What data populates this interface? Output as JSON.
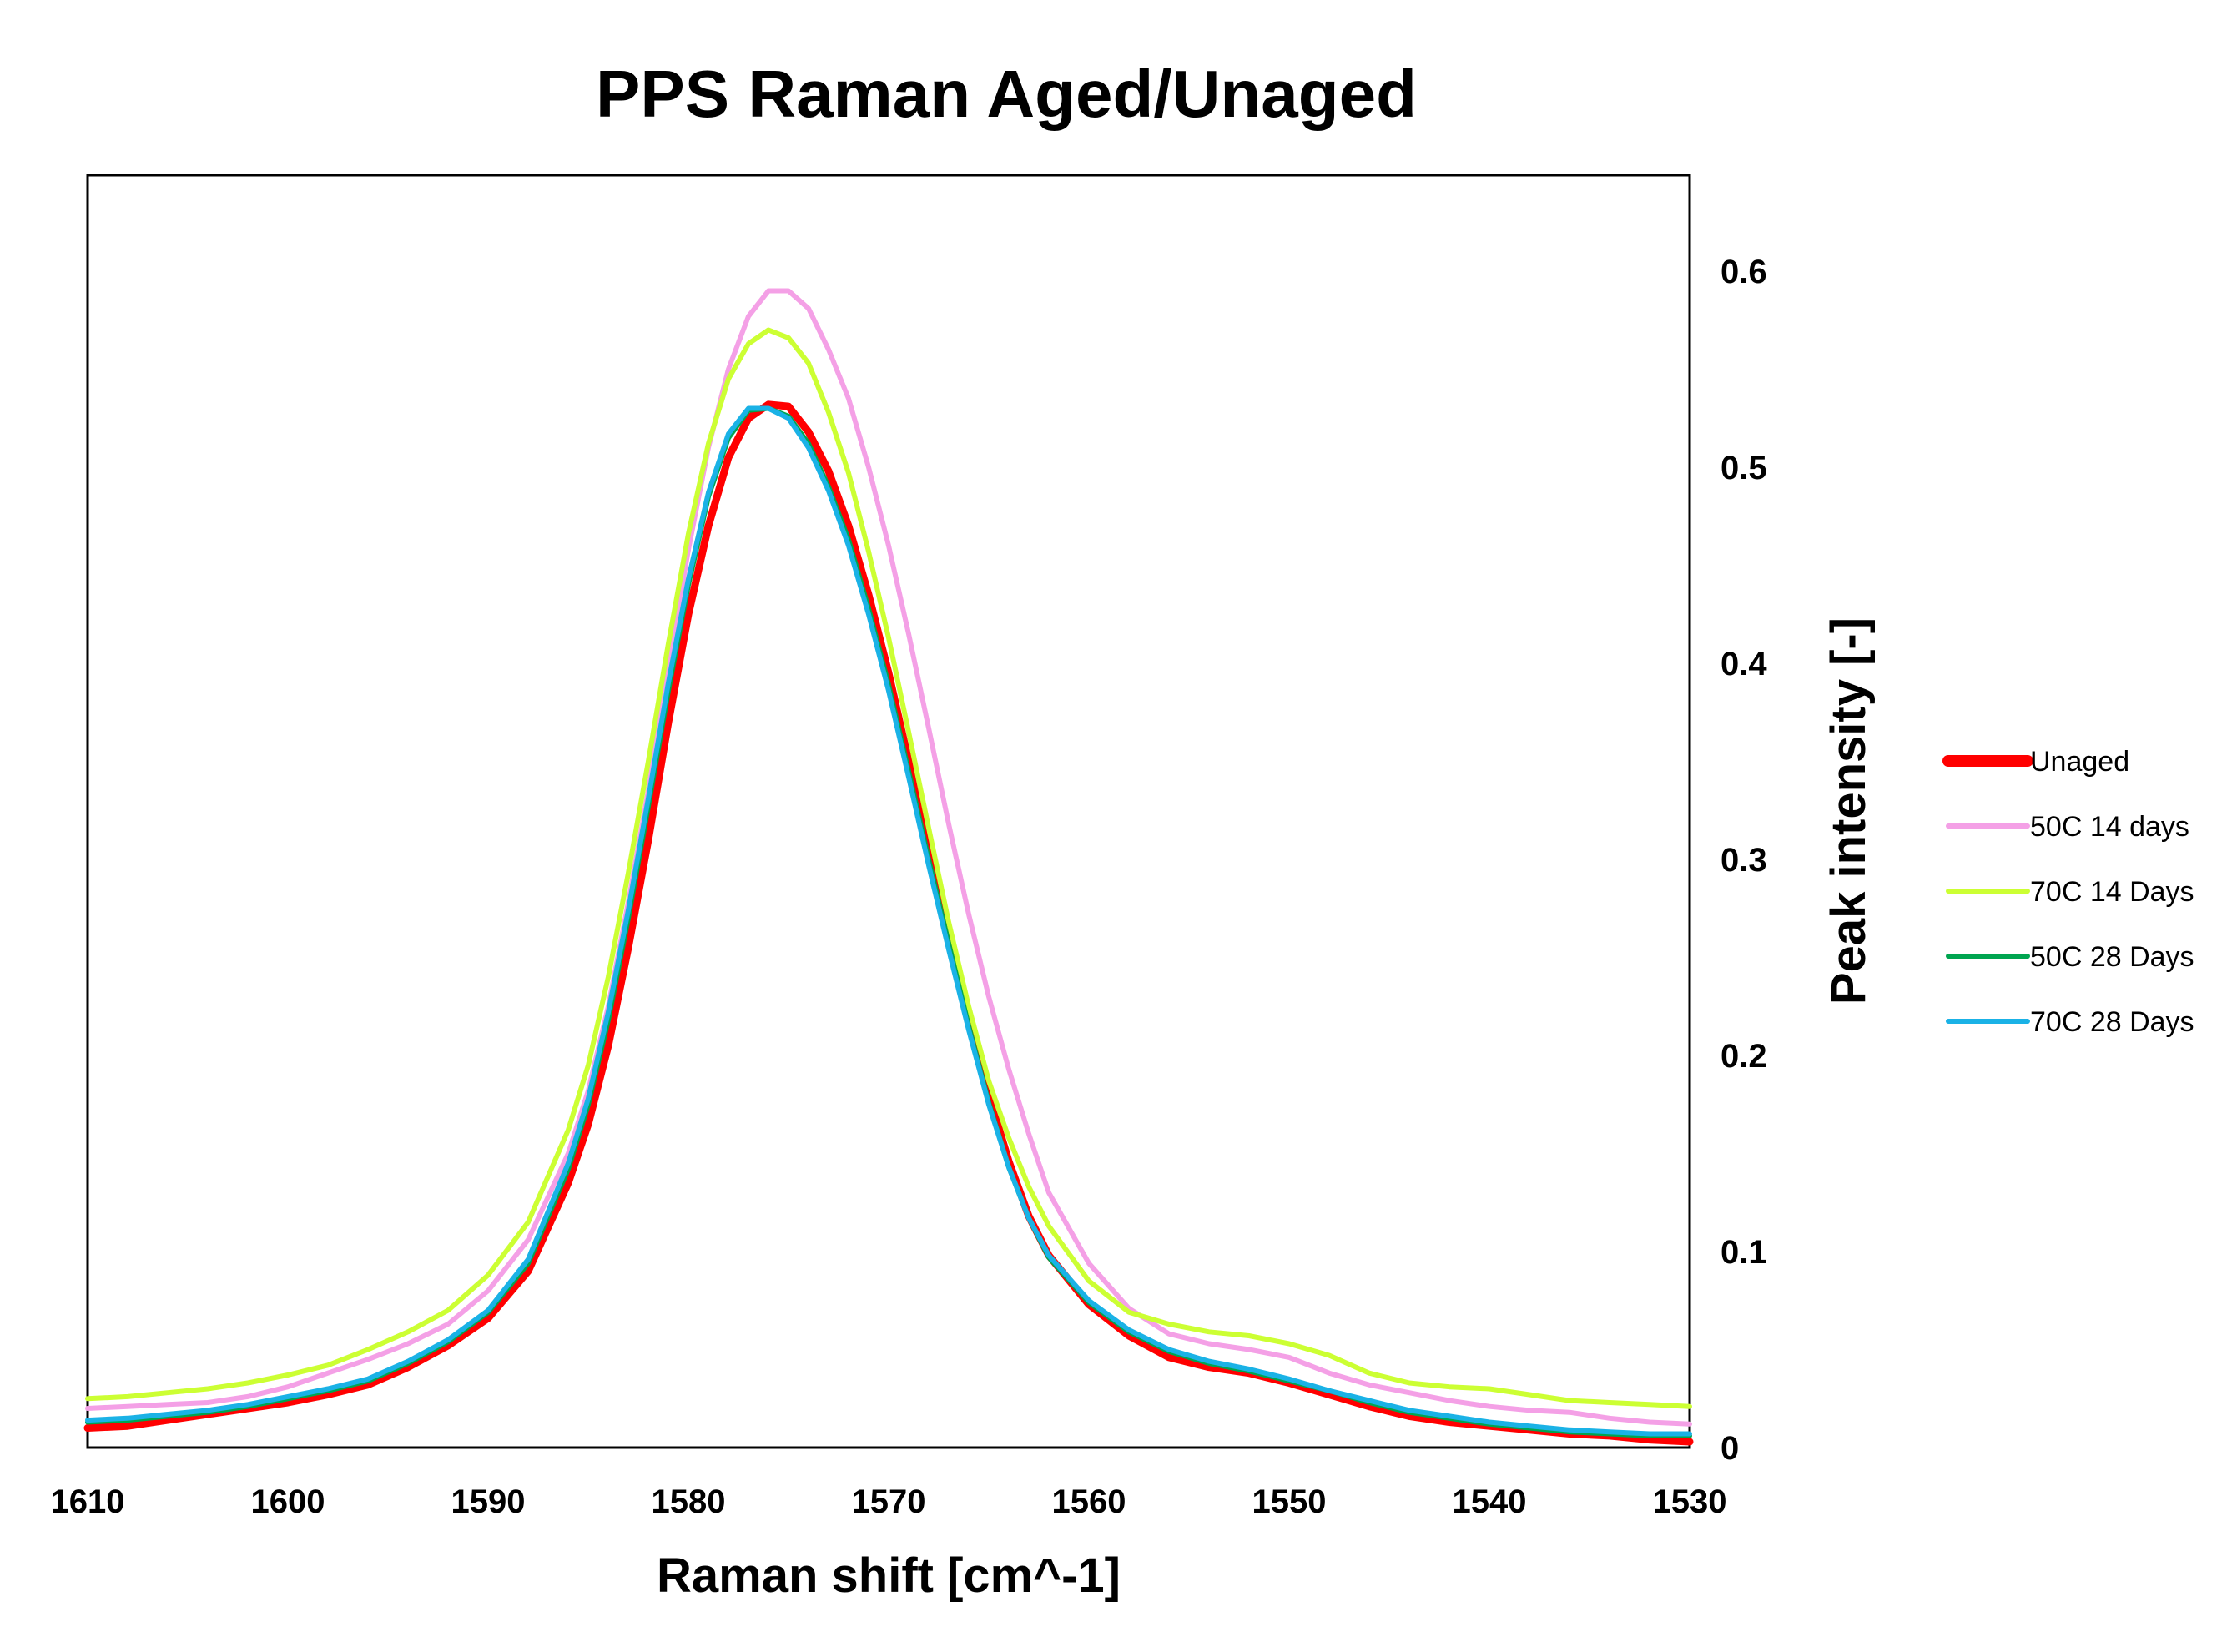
{
  "chart_data": {
    "type": "line",
    "title": "PPS Raman Aged/Unaged",
    "xlabel": "Raman shift [cm^-1]",
    "ylabel": "Peak intensity [-]",
    "xlim": [
      1610,
      1530
    ],
    "x_reversed": true,
    "ylim": [
      0,
      0.65
    ],
    "x_ticks": [
      1610,
      1600,
      1590,
      1580,
      1570,
      1560,
      1550,
      1540,
      1530
    ],
    "y_ticks": [
      0,
      0.1,
      0.2,
      0.3,
      0.4,
      0.5,
      0.6
    ],
    "y_axis_side": "right",
    "grid": false,
    "legend_position": "right",
    "x": [
      1610,
      1608,
      1606,
      1604,
      1602,
      1600,
      1598,
      1596,
      1594,
      1592,
      1590,
      1588,
      1586,
      1585,
      1584,
      1583,
      1582,
      1581,
      1580,
      1579,
      1578,
      1577,
      1576,
      1575,
      1574,
      1573,
      1572,
      1571,
      1570,
      1569,
      1568,
      1567,
      1566,
      1565,
      1564,
      1563,
      1562,
      1560,
      1558,
      1556,
      1554,
      1552,
      1550,
      1548,
      1546,
      1544,
      1542,
      1540,
      1538,
      1536,
      1534,
      1532,
      1530
    ],
    "series": [
      {
        "name": "Unaged",
        "color": "#ff0000",
        "values": [
          0.01,
          0.011,
          0.014,
          0.017,
          0.02,
          0.023,
          0.027,
          0.032,
          0.041,
          0.052,
          0.066,
          0.09,
          0.135,
          0.165,
          0.205,
          0.255,
          0.31,
          0.37,
          0.425,
          0.47,
          0.505,
          0.525,
          0.532,
          0.531,
          0.518,
          0.498,
          0.47,
          0.435,
          0.395,
          0.35,
          0.305,
          0.262,
          0.22,
          0.18,
          0.146,
          0.118,
          0.098,
          0.073,
          0.057,
          0.046,
          0.041,
          0.038,
          0.033,
          0.027,
          0.021,
          0.016,
          0.013,
          0.011,
          0.009,
          0.007,
          0.006,
          0.004,
          0.003
        ]
      },
      {
        "name": "50C 14 days",
        "color": "#f4a0e6",
        "values": [
          0.02,
          0.021,
          0.022,
          0.023,
          0.026,
          0.031,
          0.038,
          0.045,
          0.053,
          0.063,
          0.08,
          0.106,
          0.15,
          0.182,
          0.225,
          0.278,
          0.335,
          0.398,
          0.458,
          0.51,
          0.55,
          0.577,
          0.59,
          0.59,
          0.581,
          0.56,
          0.535,
          0.5,
          0.46,
          0.415,
          0.367,
          0.318,
          0.272,
          0.23,
          0.193,
          0.16,
          0.13,
          0.094,
          0.071,
          0.058,
          0.053,
          0.05,
          0.046,
          0.038,
          0.032,
          0.028,
          0.024,
          0.021,
          0.019,
          0.018,
          0.015,
          0.013,
          0.012
        ]
      },
      {
        "name": "70C 14 Days",
        "color": "#ccff33",
        "values": [
          0.025,
          0.026,
          0.028,
          0.03,
          0.033,
          0.037,
          0.042,
          0.05,
          0.059,
          0.07,
          0.088,
          0.115,
          0.162,
          0.195,
          0.24,
          0.293,
          0.35,
          0.41,
          0.466,
          0.512,
          0.545,
          0.563,
          0.57,
          0.566,
          0.553,
          0.528,
          0.497,
          0.457,
          0.413,
          0.365,
          0.316,
          0.268,
          0.225,
          0.187,
          0.158,
          0.133,
          0.113,
          0.085,
          0.069,
          0.063,
          0.059,
          0.057,
          0.053,
          0.047,
          0.038,
          0.033,
          0.031,
          0.03,
          0.027,
          0.024,
          0.023,
          0.022,
          0.021
        ]
      },
      {
        "name": "50C 28 Days",
        "color": "#00a550",
        "values": [
          0.013,
          0.014,
          0.016,
          0.018,
          0.021,
          0.025,
          0.029,
          0.034,
          0.043,
          0.054,
          0.069,
          0.094,
          0.142,
          0.175,
          0.218,
          0.27,
          0.327,
          0.386,
          0.44,
          0.485,
          0.515,
          0.529,
          0.53,
          0.526,
          0.512,
          0.49,
          0.463,
          0.428,
          0.389,
          0.345,
          0.3,
          0.257,
          0.215,
          0.176,
          0.143,
          0.117,
          0.097,
          0.074,
          0.059,
          0.049,
          0.043,
          0.039,
          0.034,
          0.029,
          0.023,
          0.018,
          0.015,
          0.012,
          0.01,
          0.008,
          0.007,
          0.006,
          0.006
        ]
      },
      {
        "name": "70C 28 Days",
        "color": "#1ab2e6",
        "values": [
          0.014,
          0.015,
          0.017,
          0.019,
          0.022,
          0.026,
          0.03,
          0.035,
          0.044,
          0.055,
          0.07,
          0.096,
          0.145,
          0.178,
          0.222,
          0.274,
          0.331,
          0.39,
          0.443,
          0.487,
          0.517,
          0.53,
          0.53,
          0.525,
          0.51,
          0.488,
          0.46,
          0.425,
          0.386,
          0.342,
          0.297,
          0.254,
          0.213,
          0.175,
          0.143,
          0.117,
          0.098,
          0.075,
          0.06,
          0.05,
          0.044,
          0.04,
          0.035,
          0.029,
          0.024,
          0.019,
          0.016,
          0.013,
          0.011,
          0.009,
          0.008,
          0.007,
          0.007
        ]
      }
    ]
  }
}
